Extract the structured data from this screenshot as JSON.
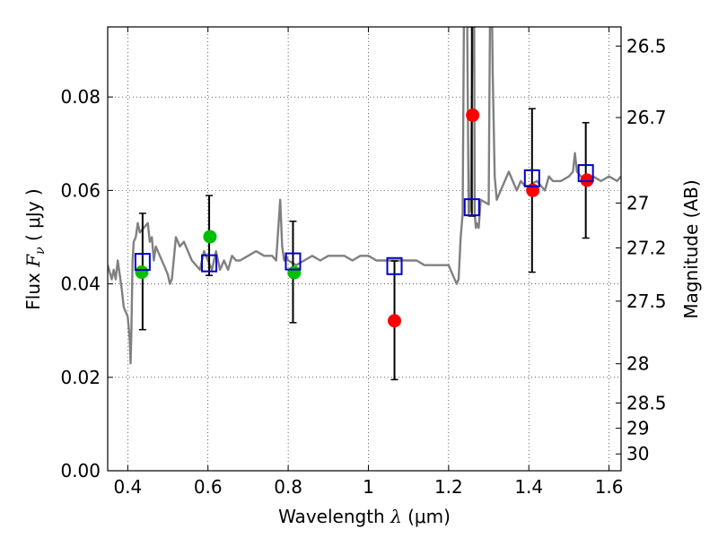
{
  "chart_data": {
    "type": "scatter",
    "xlabel_text": "Wavelength  ",
    "xlabel_symbol": "λ",
    "xlabel_unit": " (μm)",
    "ylabel_text": "Flux  ",
    "ylabel_symbol": "F",
    "ylabel_sub": "ν",
    "ylabel_unit": "  ( μJy )",
    "y2label": "Magnitude (AB)",
    "xlim": [
      0.35,
      1.63
    ],
    "ylim": [
      0.0,
      0.095
    ],
    "grid": true,
    "x_ticks": [
      0.4,
      0.6,
      0.8,
      1.0,
      1.2,
      1.4,
      1.6
    ],
    "x_tick_labels": [
      "0.4",
      "0.6",
      "0.8",
      "1",
      "1.2",
      "1.4",
      "1.6"
    ],
    "y_ticks": [
      0.0,
      0.02,
      0.04,
      0.06,
      0.08
    ],
    "y_tick_labels": [
      "0.00",
      "0.02",
      "0.04",
      "0.06",
      "0.08"
    ],
    "y2_ticks": [
      {
        "label": "26.5",
        "flux": 0.0909
      },
      {
        "label": "26.7",
        "flux": 0.0756
      },
      {
        "label": "27",
        "flux": 0.0573
      },
      {
        "label": "27.2",
        "flux": 0.0477
      },
      {
        "label": "27.5",
        "flux": 0.0363
      },
      {
        "label": "28",
        "flux": 0.0229
      },
      {
        "label": "28.5",
        "flux": 0.0145
      },
      {
        "label": "29",
        "flux": 0.0091
      },
      {
        "label": "30",
        "flux": 0.0036
      }
    ],
    "colors": {
      "model": "#808080",
      "green": "#00bf00",
      "red": "#ff0000",
      "box": "#0000cc",
      "errorbar": "#000000"
    },
    "model_spectrum": {
      "name": "",
      "x": [
        0.35,
        0.36,
        0.365,
        0.37,
        0.375,
        0.38,
        0.385,
        0.39,
        0.395,
        0.4,
        0.403,
        0.405,
        0.407,
        0.409,
        0.412,
        0.415,
        0.42,
        0.425,
        0.43,
        0.44,
        0.45,
        0.455,
        0.46,
        0.465,
        0.47,
        0.48,
        0.49,
        0.5,
        0.505,
        0.51,
        0.52,
        0.53,
        0.54,
        0.55,
        0.56,
        0.58,
        0.59,
        0.6,
        0.61,
        0.62,
        0.63,
        0.64,
        0.65,
        0.66,
        0.67,
        0.68,
        0.7,
        0.72,
        0.74,
        0.76,
        0.77,
        0.78,
        0.785,
        0.79,
        0.795,
        0.8,
        0.82,
        0.84,
        0.86,
        0.88,
        0.9,
        0.92,
        0.94,
        0.96,
        0.98,
        1.0,
        1.02,
        1.04,
        1.06,
        1.08,
        1.1,
        1.12,
        1.14,
        1.16,
        1.18,
        1.2,
        1.22,
        1.225,
        1.23,
        1.235,
        1.24,
        1.245,
        1.25,
        1.255,
        1.26,
        1.263,
        1.265,
        1.268,
        1.27,
        1.275,
        1.28,
        1.3,
        1.305,
        1.31,
        1.315,
        1.32,
        1.33,
        1.35,
        1.37,
        1.38,
        1.39,
        1.4,
        1.42,
        1.44,
        1.45,
        1.46,
        1.48,
        1.5,
        1.51,
        1.515,
        1.52,
        1.53,
        1.54,
        1.56,
        1.58,
        1.6,
        1.62,
        1.63
      ],
      "y": [
        0.044,
        0.041,
        0.043,
        0.041,
        0.045,
        0.042,
        0.039,
        0.035,
        0.034,
        0.033,
        0.03,
        0.028,
        0.023,
        0.03,
        0.045,
        0.049,
        0.05,
        0.053,
        0.051,
        0.052,
        0.053,
        0.049,
        0.05,
        0.045,
        0.048,
        0.046,
        0.044,
        0.042,
        0.04,
        0.041,
        0.05,
        0.048,
        0.049,
        0.047,
        0.045,
        0.043,
        0.047,
        0.045,
        0.043,
        0.047,
        0.043,
        0.045,
        0.043,
        0.046,
        0.045,
        0.045,
        0.046,
        0.047,
        0.046,
        0.046,
        0.045,
        0.058,
        0.048,
        0.045,
        0.046,
        0.045,
        0.044,
        0.045,
        0.046,
        0.045,
        0.046,
        0.046,
        0.046,
        0.045,
        0.046,
        0.046,
        0.045,
        0.045,
        0.045,
        0.045,
        0.045,
        0.045,
        0.044,
        0.044,
        0.044,
        0.044,
        0.04,
        0.041,
        0.05,
        0.055,
        0.12,
        0.11,
        0.055,
        0.056,
        0.1,
        0.12,
        0.055,
        0.052,
        0.053,
        0.052,
        0.058,
        0.057,
        0.12,
        0.085,
        0.063,
        0.058,
        0.06,
        0.064,
        0.06,
        0.062,
        0.061,
        0.061,
        0.062,
        0.06,
        0.063,
        0.062,
        0.062,
        0.063,
        0.064,
        0.068,
        0.064,
        0.063,
        0.062,
        0.063,
        0.062,
        0.063,
        0.062,
        0.063
      ]
    },
    "series": [
      {
        "marker": "circle",
        "color_key": "green",
        "x": [
          0.435,
          0.605,
          0.815
        ],
        "y": [
          0.0425,
          0.0501,
          0.0424
        ]
      },
      {
        "marker": "circle",
        "color_key": "red",
        "x": [
          1.065,
          1.26,
          1.41,
          1.545
        ],
        "y": [
          0.0321,
          0.0761,
          0.06,
          0.0622
        ]
      },
      {
        "marker": "square",
        "color_key": "box",
        "x": [
          0.437,
          0.603,
          0.812,
          1.065,
          1.258,
          1.408,
          1.542
        ],
        "y": [
          0.0447,
          0.0444,
          0.0448,
          0.0438,
          0.0564,
          0.0626,
          0.0637
        ]
      }
    ],
    "error_bars": [
      {
        "x": 0.437,
        "y_low": 0.0302,
        "y_high": 0.0551
      },
      {
        "x": 0.603,
        "y_low": 0.0418,
        "y_high": 0.0589
      },
      {
        "x": 0.812,
        "y_low": 0.0317,
        "y_high": 0.0534
      },
      {
        "x": 1.065,
        "y_low": 0.0195,
        "y_high": 0.0449
      },
      {
        "x": 1.258,
        "y_low": 0.0545,
        "y_high": 0.095
      },
      {
        "x": 1.408,
        "y_low": 0.0425,
        "y_high": 0.0775
      },
      {
        "x": 1.542,
        "y_low": 0.0498,
        "y_high": 0.0745
      }
    ]
  }
}
